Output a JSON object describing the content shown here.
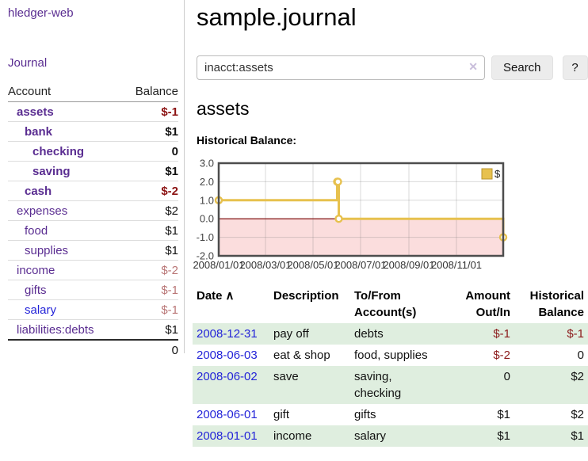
{
  "sidebar": {
    "brand": "hledger-web",
    "journal_link": "Journal",
    "accounts_table": {
      "headers": {
        "account": "Account",
        "balance": "Balance"
      },
      "rows": [
        {
          "account": "assets",
          "balance": "$-1"
        },
        {
          "account": "bank",
          "balance": "$1"
        },
        {
          "account": "checking",
          "balance": "0"
        },
        {
          "account": "saving",
          "balance": "$1"
        },
        {
          "account": "cash",
          "balance": "$-2"
        },
        {
          "account": "expenses",
          "balance": "$2"
        },
        {
          "account": "food",
          "balance": "$1"
        },
        {
          "account": "supplies",
          "balance": "$1"
        },
        {
          "account": "income",
          "balance": "$-2"
        },
        {
          "account": "gifts",
          "balance": "$-1"
        },
        {
          "account": "salary",
          "balance": "$-1"
        },
        {
          "account": "liabilities:debts",
          "balance": "$1"
        }
      ],
      "total": "0"
    }
  },
  "main": {
    "title": "sample.journal",
    "search": {
      "value": "inacct:assets",
      "clear_icon": "✕",
      "button_label": "Search",
      "help_label": "?"
    },
    "account_heading": "assets",
    "chart_label": "Historical Balance:"
  },
  "chart_data": {
    "type": "line",
    "step": true,
    "title": "Historical Balance",
    "series": [
      {
        "name": "$",
        "points": [
          [
            "2008-01-01",
            1
          ],
          [
            "2008-06-01",
            2
          ],
          [
            "2008-06-02",
            2
          ],
          [
            "2008-06-03",
            0
          ],
          [
            "2008-12-31",
            -1
          ]
        ]
      }
    ],
    "x_range": [
      "2008-01-01",
      "2008-12-31"
    ],
    "ylim": [
      -2,
      3
    ],
    "yticks": [
      3.0,
      2.0,
      1.0,
      0.0,
      -1.0,
      -2.0
    ],
    "xticks": [
      "2008/01/01",
      "2008/03/01",
      "2008/05/01",
      "2008/07/01",
      "2008/09/01",
      "2008/11/01"
    ],
    "grid": true,
    "legend": {
      "label": "$",
      "position": "top-right"
    },
    "colors": {
      "line": "#e7c14e",
      "negative_fill": "#fbdddd",
      "zero_line": "#7a0000",
      "border": "#4d4d4d"
    }
  },
  "table": {
    "headers": {
      "date": "Date",
      "sort_indicator": "∧",
      "description": "Description",
      "tofrom": "To/From Account(s)",
      "amount": "Amount Out/In",
      "historical": "Historical Balance"
    },
    "rows": [
      {
        "date": "2008-12-31",
        "description": "pay off",
        "tofrom": "debts",
        "amount": "$-1",
        "historical": "$-1"
      },
      {
        "date": "2008-06-03",
        "description": "eat & shop",
        "tofrom": "food, supplies",
        "amount": "$-2",
        "historical": "0"
      },
      {
        "date": "2008-06-02",
        "description": "save",
        "tofrom": "saving, checking",
        "amount": "0",
        "historical": "$2"
      },
      {
        "date": "2008-06-01",
        "description": "gift",
        "tofrom": "gifts",
        "amount": "$1",
        "historical": "$2"
      },
      {
        "date": "2008-01-01",
        "description": "income",
        "tofrom": "salary",
        "amount": "$1",
        "historical": "$1"
      }
    ]
  },
  "colors": {
    "link_purple": "#5a2d91",
    "link_blue": "#2323d8",
    "negative_strong": "#8b1212",
    "negative_soft": "#b97676",
    "row_stripe_green": "#dfeedf"
  }
}
